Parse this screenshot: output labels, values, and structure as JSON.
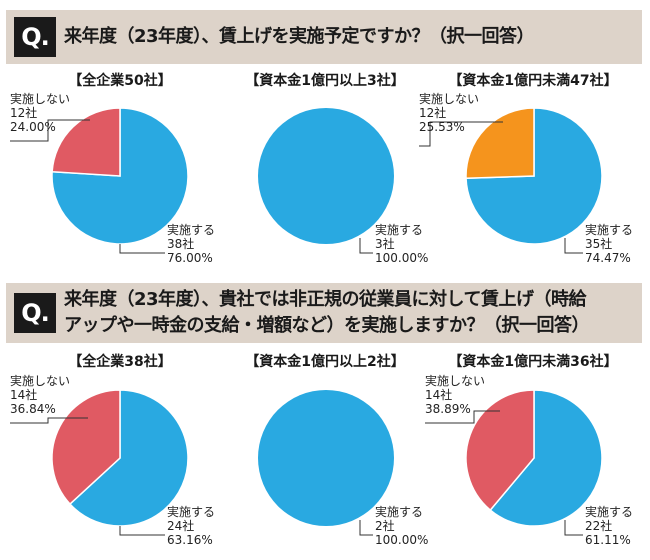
{
  "colors": {
    "implement": "#29a9e1",
    "not_implement": "#e05a63",
    "not_implement_alt": "#f5941d",
    "bar": "#ddd3c9"
  },
  "questions": [
    {
      "badge": "Q.",
      "lines": [
        "来年度（23年度）、賃上げを実施予定ですか？（択一回答）"
      ]
    },
    {
      "badge": "Q.",
      "lines": [
        "来年度（23年度）、貴社では非正規の従業員に対して賃上げ（時給",
        "アップや一時金の支給・増額など）を実施しますか？（択一回答）"
      ]
    }
  ],
  "chart_data": [
    {
      "type": "pie",
      "title": "【全企業50社】",
      "slices": [
        {
          "label": "実施する",
          "count": "38社",
          "pct": "76.00%",
          "value": 76.0,
          "color": "#29a9e1"
        },
        {
          "label": "実施しない",
          "count": "12社",
          "pct": "24.00%",
          "value": 24.0,
          "color": "#e05a63"
        }
      ]
    },
    {
      "type": "pie",
      "title": "【資本金1億円以上3社】",
      "slices": [
        {
          "label": "実施する",
          "count": "3社",
          "pct": "100.00%",
          "value": 100.0,
          "color": "#29a9e1"
        }
      ]
    },
    {
      "type": "pie",
      "title": "【資本金1億円未満47社】",
      "slices": [
        {
          "label": "実施する",
          "count": "35社",
          "pct": "74.47%",
          "value": 74.47,
          "color": "#29a9e1"
        },
        {
          "label": "実施しない",
          "count": "12社",
          "pct": "25.53%",
          "value": 25.53,
          "color": "#f5941d"
        }
      ]
    },
    {
      "type": "pie",
      "title": "【全企業38社】",
      "slices": [
        {
          "label": "実施する",
          "count": "24社",
          "pct": "63.16%",
          "value": 63.16,
          "color": "#29a9e1"
        },
        {
          "label": "実施しない",
          "count": "14社",
          "pct": "36.84%",
          "value": 36.84,
          "color": "#e05a63"
        }
      ]
    },
    {
      "type": "pie",
      "title": "【資本金1億円以上2社】",
      "slices": [
        {
          "label": "実施する",
          "count": "2社",
          "pct": "100.00%",
          "value": 100.0,
          "color": "#29a9e1"
        }
      ]
    },
    {
      "type": "pie",
      "title": "【資本金1億円未満36社】",
      "slices": [
        {
          "label": "実施する",
          "count": "22社",
          "pct": "61.11%",
          "value": 61.11,
          "color": "#29a9e1"
        },
        {
          "label": "実施しない",
          "count": "14社",
          "pct": "38.89%",
          "value": 38.89,
          "color": "#e05a63"
        }
      ]
    }
  ]
}
